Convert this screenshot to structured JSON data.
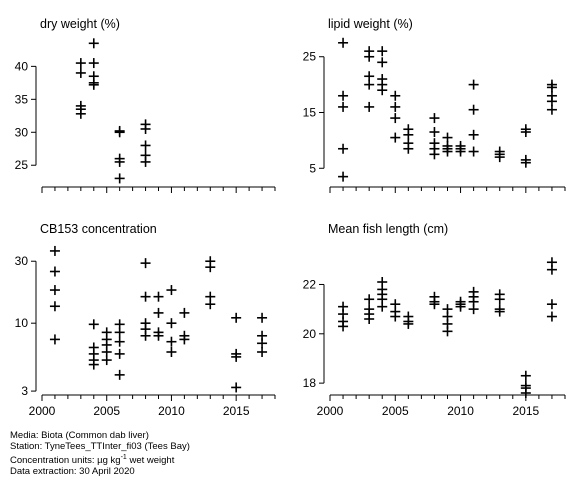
{
  "chart_data": [
    {
      "type": "scatter",
      "title": "dry weight (%)",
      "xlim": [
        2000,
        2018
      ],
      "ylim": [
        22,
        44
      ],
      "yscale": "linear",
      "yticks": [
        25,
        30,
        35,
        40
      ],
      "x": [
        2003,
        2003,
        2003,
        2003,
        2003,
        2004,
        2004,
        2004,
        2004,
        2004,
        2006,
        2006,
        2006,
        2006,
        2006,
        2008,
        2008,
        2008,
        2008,
        2008
      ],
      "y": [
        40.5,
        39,
        34,
        33.5,
        32.8,
        43.5,
        40.5,
        38.5,
        37.5,
        37.2,
        30.2,
        30,
        26,
        25.5,
        23,
        31.2,
        30.5,
        28,
        26.5,
        25.5
      ]
    },
    {
      "type": "scatter",
      "title": "lipid weight (%)",
      "xlim": [
        2000,
        2018
      ],
      "ylim": [
        2,
        28
      ],
      "yscale": "linear",
      "yticks": [
        5,
        15,
        25
      ],
      "x": [
        2001,
        2001,
        2001,
        2001,
        2001,
        2003,
        2003,
        2003,
        2003,
        2003,
        2004,
        2004,
        2004,
        2004,
        2004,
        2005,
        2005,
        2005,
        2005,
        2006,
        2006,
        2006,
        2006,
        2008,
        2008,
        2008,
        2008,
        2008,
        2009,
        2009,
        2009,
        2009,
        2010,
        2010,
        2010,
        2011,
        2011,
        2011,
        2011,
        2013,
        2013,
        2013,
        2015,
        2015,
        2015,
        2015,
        2017,
        2017,
        2017,
        2017,
        2017
      ],
      "y": [
        27.5,
        18,
        16,
        8.5,
        3.5,
        26,
        25,
        21.5,
        20,
        16,
        26,
        24,
        21,
        20,
        19,
        18,
        16,
        14,
        10.5,
        12,
        11,
        9.5,
        8.5,
        14,
        11.5,
        9.5,
        8.5,
        7.5,
        10.5,
        9,
        8.5,
        8,
        9,
        8.5,
        8,
        20,
        15.5,
        11,
        8,
        8,
        7.5,
        7,
        12,
        11.5,
        6.5,
        6,
        20,
        19.5,
        18,
        17,
        15.5
      ]
    },
    {
      "type": "scatter",
      "title": "CB153 concentration",
      "xlim": [
        2000,
        2018
      ],
      "ylim": [
        2.9,
        40
      ],
      "yscale": "log",
      "yticks": [
        3,
        10,
        30
      ],
      "x": [
        2001,
        2001,
        2001,
        2001,
        2001,
        2004,
        2004,
        2004,
        2004,
        2004,
        2005,
        2005,
        2005,
        2005,
        2005,
        2006,
        2006,
        2006,
        2006,
        2006,
        2008,
        2008,
        2008,
        2008,
        2008,
        2009,
        2009,
        2009,
        2009,
        2010,
        2010,
        2010,
        2010,
        2011,
        2011,
        2011,
        2013,
        2013,
        2013,
        2013,
        2015,
        2015,
        2015,
        2015,
        2017,
        2017,
        2017,
        2017
      ],
      "y": [
        36,
        25,
        18,
        13.5,
        7.5,
        9.8,
        6.5,
        5.8,
        5.2,
        4.8,
        8.5,
        7.5,
        6.8,
        6,
        5.2,
        9.8,
        8.5,
        7.2,
        5.8,
        4,
        29,
        16,
        10,
        9,
        8,
        16,
        12,
        8.5,
        8,
        18,
        10,
        7.2,
        6,
        12,
        8,
        7.5,
        30,
        27,
        16,
        14,
        11,
        5.8,
        5.5,
        3.2,
        11,
        8,
        7,
        6
      ]
    },
    {
      "type": "scatter",
      "title": "Mean fish length (cm)",
      "xlim": [
        2000,
        2018
      ],
      "ylim": [
        17.6,
        23.6
      ],
      "yscale": "linear",
      "yticks": [
        18,
        20,
        22
      ],
      "x": [
        2001,
        2001,
        2001,
        2001,
        2003,
        2003,
        2003,
        2003,
        2004,
        2004,
        2004,
        2004,
        2004,
        2005,
        2005,
        2005,
        2006,
        2006,
        2006,
        2008,
        2008,
        2008,
        2009,
        2009,
        2009,
        2009,
        2010,
        2010,
        2010,
        2011,
        2011,
        2011,
        2011,
        2013,
        2013,
        2013,
        2013,
        2015,
        2015,
        2015,
        2015,
        2017,
        2017,
        2017,
        2017
      ],
      "y": [
        21.1,
        20.8,
        20.5,
        20.3,
        21.4,
        21,
        20.8,
        20.6,
        22.1,
        21.8,
        21.6,
        21.4,
        21.1,
        21.2,
        20.9,
        20.7,
        20.7,
        20.5,
        20.4,
        21.5,
        21.3,
        21.2,
        21,
        20.7,
        20.4,
        20.1,
        21.3,
        21.2,
        21.1,
        21.7,
        21.5,
        21.3,
        21,
        21.6,
        21.4,
        21,
        20.9,
        18.3,
        17.9,
        17.8,
        17.6,
        22.9,
        22.6,
        21.2,
        20.7
      ]
    }
  ],
  "xticks": [
    2000,
    2005,
    2010,
    2015
  ],
  "footer": {
    "media": "Media: Biota (Common dab liver)",
    "station": "Station: TyneTees_TTInter_fi03 (Tees Bay)",
    "units_prefix": "Concentration units: ",
    "units_mu": "µg kg",
    "units_sup": "-1",
    "units_suffix": " wet weight",
    "extraction": "Data extraction: 30 April 2020"
  }
}
